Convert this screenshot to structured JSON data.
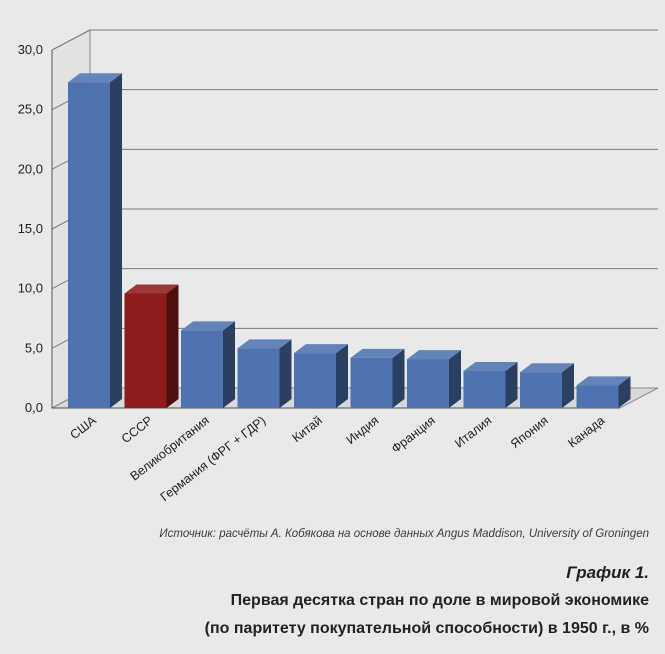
{
  "chart_data": {
    "type": "bar",
    "categories": [
      "США",
      "СССР",
      "Великобритания",
      "Германия (ФРГ + ГДР)",
      "Китай",
      "Индия",
      "Франция",
      "Италия",
      "Япония",
      "Канада"
    ],
    "values": [
      27.3,
      9.6,
      6.5,
      5.0,
      4.6,
      4.2,
      4.1,
      3.1,
      3.0,
      1.9
    ],
    "bar_colors": [
      "#4f73b0",
      "#8e1c1c",
      "#4f73b0",
      "#4f73b0",
      "#4f73b0",
      "#4f73b0",
      "#4f73b0",
      "#4f73b0",
      "#4f73b0",
      "#4f73b0"
    ],
    "highlight_color": "#8e1c1c",
    "ylim": [
      0,
      30
    ],
    "yticks": [
      "0,0",
      "5,0",
      "10,0",
      "15,0",
      "20,0",
      "25,0",
      "30,0"
    ],
    "grid": true,
    "style": "3d"
  },
  "source": "Источник: расчёты А. Кобякова на основе данных Angus Maddison, University of Groningen",
  "figure_label": "График 1.",
  "title_line1": "Первая десятка стран по доле в мировой экономике",
  "title_line2": "(по паритету покупательной способности) в 1950 г., в %"
}
